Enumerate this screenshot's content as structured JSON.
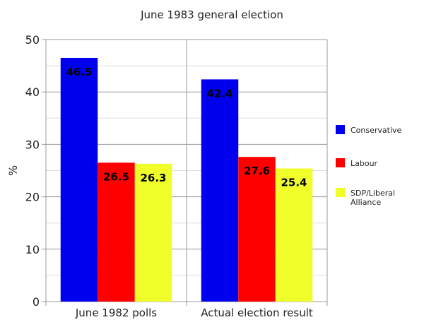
{
  "chart_data": {
    "type": "bar",
    "title": "June 1983 general election",
    "ylabel": "%",
    "xlabel": "",
    "ylim": [
      0,
      50
    ],
    "yticks": [
      0,
      10,
      20,
      30,
      40,
      50
    ],
    "grid": true,
    "legend_position": "right",
    "categories": [
      "June 1982 polls",
      "Actual election result"
    ],
    "series": [
      {
        "name": "Conservative",
        "color": "#0000ee",
        "values": [
          46.5,
          42.4
        ],
        "labels": [
          "46.5",
          "42.4"
        ]
      },
      {
        "name": "Labour",
        "color": "#ff0000",
        "values": [
          26.5,
          27.6
        ],
        "labels": [
          "26.5",
          "27.6"
        ]
      },
      {
        "name": "SDP/Liberal Alliance",
        "color": "#f0ff2a",
        "values": [
          26.3,
          25.4
        ],
        "labels": [
          "26.3",
          "25.4"
        ]
      }
    ]
  }
}
